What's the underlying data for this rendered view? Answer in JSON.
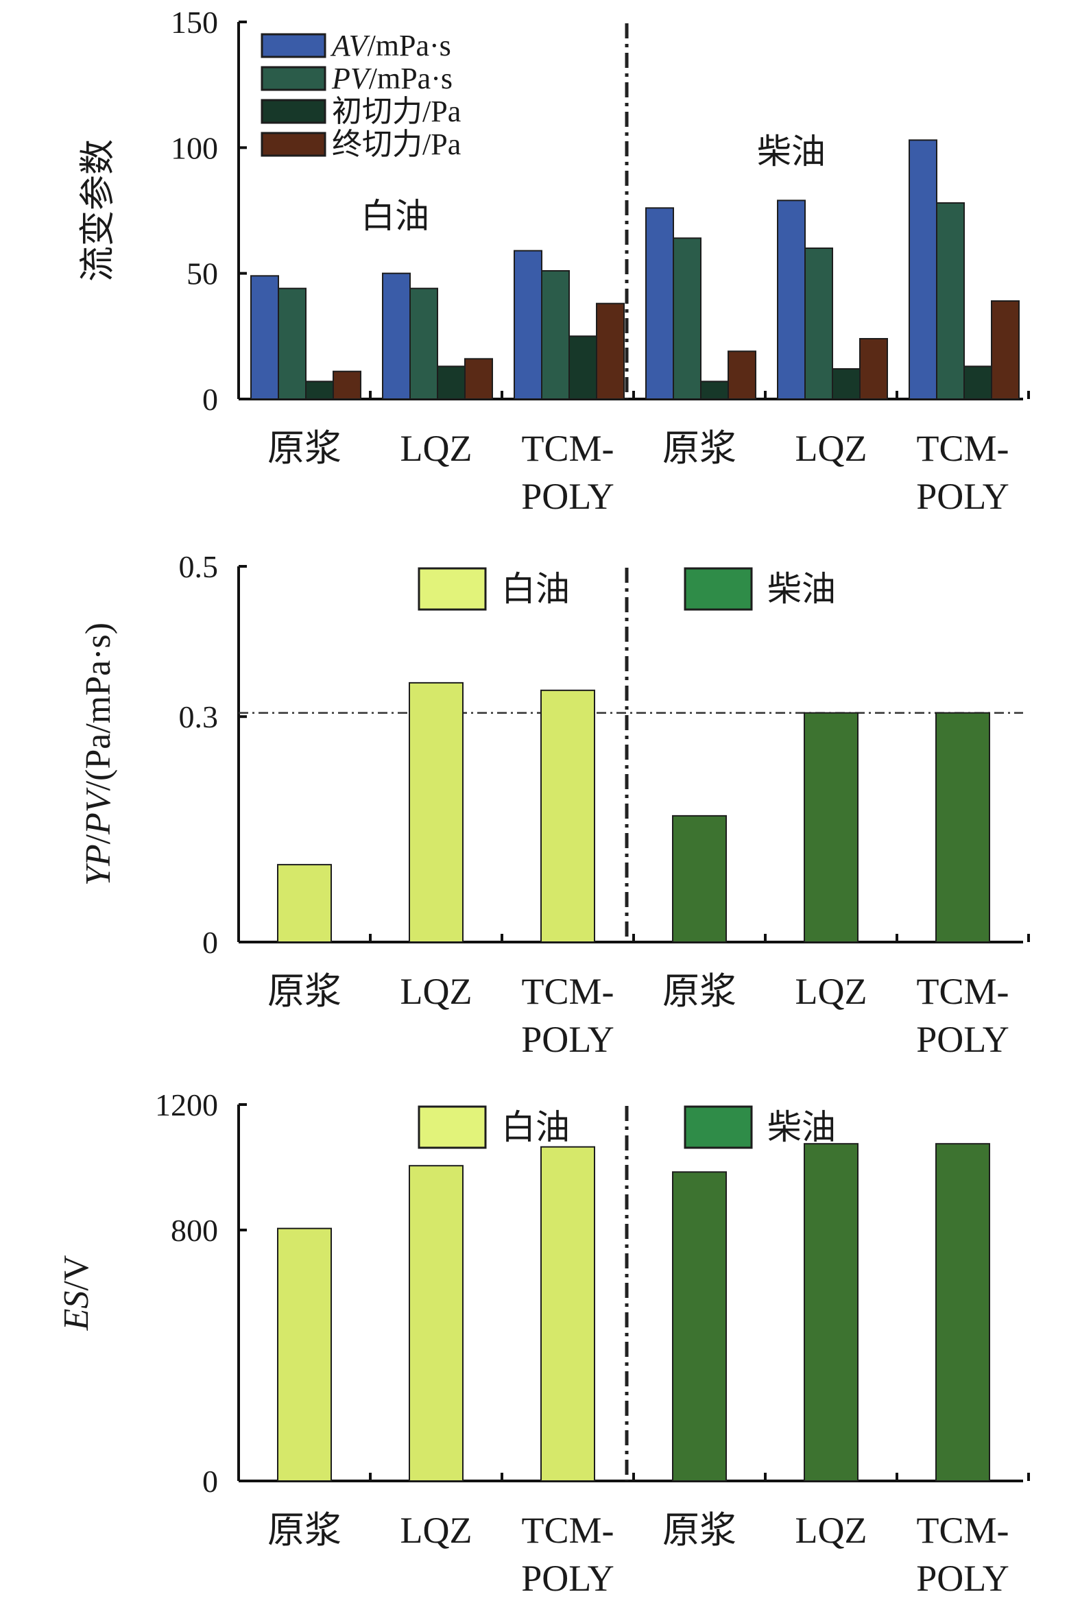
{
  "chart_data": [
    {
      "type": "bar",
      "ylabel": "流变参数",
      "ylim": [
        0,
        150
      ],
      "yticks": [
        "0",
        "50",
        "100",
        "150"
      ],
      "categories": [
        "原浆",
        "LQZ",
        "TCM-\nPOLY",
        "原浆",
        "LQZ",
        "TCM-\nPOLY"
      ],
      "groups": [
        "白油",
        "柴油"
      ],
      "group_of_category": [
        0,
        0,
        0,
        1,
        1,
        1
      ],
      "series": [
        {
          "name": "AV/mPa·s",
          "name_parts": [
            {
              "t": "AV",
              "italic": true
            },
            {
              "t": "/mPa·s",
              "italic": false
            }
          ],
          "color": "#3a5ca8",
          "values": [
            49,
            50,
            59,
            76,
            79,
            103
          ]
        },
        {
          "name": "PV/mPa·s",
          "name_parts": [
            {
              "t": "PV",
              "italic": true
            },
            {
              "t": "/mPa·s",
              "italic": false
            }
          ],
          "color": "#2b5c4a",
          "values": [
            44,
            44,
            51,
            64,
            60,
            78
          ]
        },
        {
          "name": "初切力/Pa",
          "name_parts": [
            {
              "t": "初切力/Pa",
              "italic": false
            }
          ],
          "color": "#173829",
          "values": [
            7,
            13,
            25,
            7,
            12,
            13
          ]
        },
        {
          "name": "终切力/Pa",
          "name_parts": [
            {
              "t": "终切力/Pa",
              "italic": false
            }
          ],
          "color": "#5a2a16",
          "values": [
            11,
            16,
            38,
            19,
            24,
            39
          ]
        }
      ],
      "group_labels": [
        "白油",
        "柴油"
      ],
      "legend": "top-left",
      "grid": false
    },
    {
      "type": "bar",
      "ylabel_parts": [
        {
          "t": "YP",
          "italic": true
        },
        {
          "t": "/",
          "italic": false
        },
        {
          "t": "PV",
          "italic": true
        },
        {
          "t": "/(Pa/mPa·s)",
          "italic": false
        }
      ],
      "ylabel": "YP/PV/(Pa/mPa·s)",
      "ylim": [
        0,
        0.5
      ],
      "ytick_values": [
        0,
        0.3,
        0.5
      ],
      "yticks": [
        "0",
        "0.3",
        "0.5"
      ],
      "categories": [
        "原浆",
        "LQZ",
        "TCM-\nPOLY",
        "原浆",
        "LQZ",
        "TCM-\nPOLY"
      ],
      "series": [
        {
          "name": "白油",
          "color": "#d6e86a",
          "values": [
            0.103,
            0.345,
            0.335,
            null,
            null,
            null
          ]
        },
        {
          "name": "柴油",
          "color": "#3d7330",
          "values": [
            null,
            null,
            null,
            0.168,
            0.305,
            0.305
          ]
        }
      ],
      "legend_colors": [
        "#e2f37a",
        "#2f8c48"
      ],
      "reference_line": 0.305,
      "legend": "top",
      "grid": false
    },
    {
      "type": "bar",
      "ylabel_parts": [
        {
          "t": "ES",
          "italic": true
        },
        {
          "t": "/V",
          "italic": false
        }
      ],
      "ylabel": "ES/V",
      "ylim": [
        0,
        1200
      ],
      "ytick_values": [
        0,
        800,
        1200
      ],
      "yticks": [
        "0",
        "800",
        "1200"
      ],
      "categories": [
        "原浆",
        "LQZ",
        "TCM-\nPOLY",
        "原浆",
        "LQZ",
        "TCM-\nPOLY"
      ],
      "series": [
        {
          "name": "白油",
          "color": "#d6e86a",
          "values": [
            805,
            1005,
            1065,
            null,
            null,
            null
          ]
        },
        {
          "name": "柴油",
          "color": "#3d7330",
          "values": [
            null,
            null,
            null,
            985,
            1075,
            1075
          ]
        }
      ],
      "legend_colors": [
        "#e2f37a",
        "#2f8c48"
      ],
      "legend": "top",
      "grid": false
    }
  ]
}
